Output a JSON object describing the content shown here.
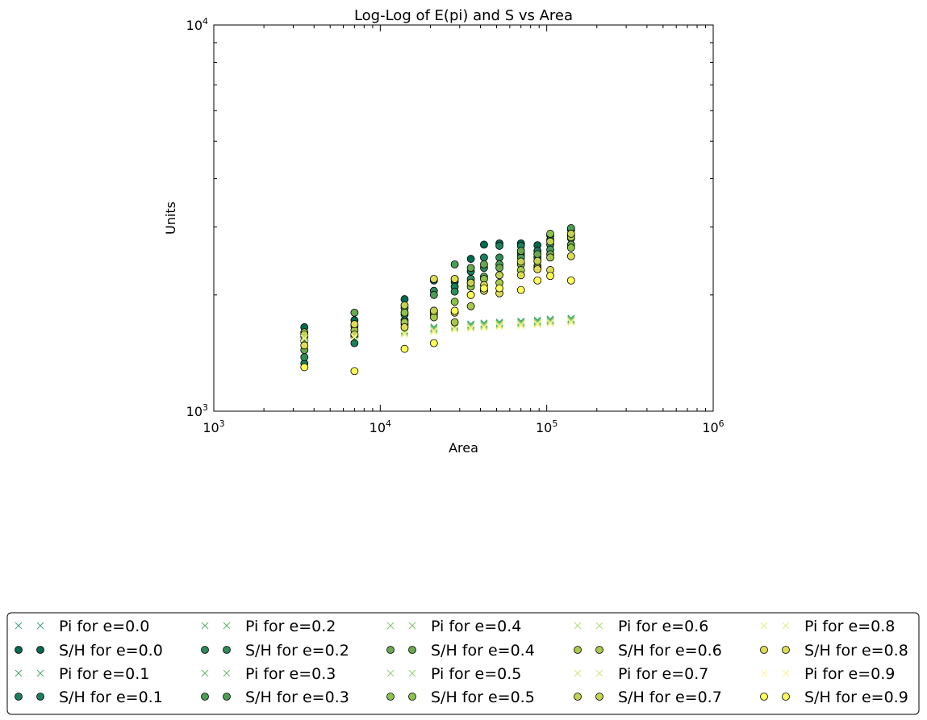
{
  "chart_data": {
    "type": "scatter",
    "title": "Log-Log of E(pi) and S vs Area",
    "xlabel": "Area",
    "ylabel": "Units",
    "xscale": "log",
    "yscale": "log",
    "xlim": [
      1000,
      1000000
    ],
    "ylim": [
      1000,
      10000
    ],
    "x_ticks": [
      {
        "value": 1000,
        "base": "10",
        "exp": "3"
      },
      {
        "value": 10000,
        "base": "10",
        "exp": "4"
      },
      {
        "value": 100000,
        "base": "10",
        "exp": "5"
      },
      {
        "value": 1000000,
        "base": "10",
        "exp": "6"
      }
    ],
    "y_ticks": [
      {
        "value": 1000,
        "base": "10",
        "exp": "3"
      },
      {
        "value": 10000,
        "base": "10",
        "exp": "4"
      }
    ],
    "grid": false,
    "legend_position": "bottom",
    "legend_columns": 5,
    "x": [
      3500,
      7000,
      14000,
      21000,
      28000,
      35000,
      42000,
      52000,
      70000,
      88000,
      105000,
      140000
    ],
    "series": [
      {
        "name": "Pi for e=0.0",
        "marker": "x",
        "color": "#3f9e7a",
        "values": [
          1590,
          1600,
          1620,
          1650,
          1670,
          1680,
          1690,
          1700,
          1710,
          1720,
          1730,
          1740
        ]
      },
      {
        "name": "S/H for e=0.0",
        "marker": "o",
        "color": "#006a4e",
        "values": [
          1650,
          1720,
          1950,
          2180,
          2160,
          2480,
          2700,
          2720,
          2720,
          2690,
          2850,
          2950
        ]
      },
      {
        "name": "Pi for e=0.1",
        "marker": "x",
        "color": "#3fa670",
        "values": [
          1590,
          1600,
          1620,
          1650,
          1670,
          1680,
          1690,
          1700,
          1710,
          1720,
          1730,
          1740
        ]
      },
      {
        "name": "S/H for e=0.1",
        "marker": "o",
        "color": "#1b7f5a",
        "values": [
          1330,
          1500,
          1720,
          1820,
          2100,
          2300,
          2500,
          2680,
          2680,
          2600,
          2780,
          2850
        ]
      },
      {
        "name": "Pi for e=0.2",
        "marker": "x",
        "color": "#52b06a",
        "values": [
          1580,
          1590,
          1615,
          1640,
          1660,
          1670,
          1680,
          1690,
          1700,
          1710,
          1720,
          1730
        ]
      },
      {
        "name": "S/H for e=0.2",
        "marker": "o",
        "color": "#2e8b57",
        "values": [
          1380,
          1560,
          1780,
          2050,
          2040,
          2200,
          2350,
          2500,
          2550,
          2500,
          2700,
          2800
        ]
      },
      {
        "name": "Pi for e=0.3",
        "marker": "x",
        "color": "#66bb66",
        "values": [
          1570,
          1585,
          1610,
          1635,
          1655,
          1665,
          1675,
          1685,
          1695,
          1705,
          1715,
          1725
        ]
      },
      {
        "name": "S/H for e=0.3",
        "marker": "o",
        "color": "#4a9e55",
        "values": [
          1520,
          1580,
          1850,
          2000,
          2400,
          2150,
          2230,
          2400,
          2500,
          2450,
          2620,
          2980
        ]
      },
      {
        "name": "Pi for e=0.4",
        "marker": "x",
        "color": "#7dc46a",
        "values": [
          1565,
          1580,
          1605,
          1630,
          1650,
          1660,
          1670,
          1680,
          1690,
          1700,
          1710,
          1720
        ]
      },
      {
        "name": "S/H for e=0.4",
        "marker": "o",
        "color": "#6aa84f",
        "values": [
          1440,
          1800,
          1680,
          1800,
          2200,
          2350,
          2400,
          2350,
          2600,
          2550,
          2550,
          2700
        ]
      },
      {
        "name": "Pi for e=0.5",
        "marker": "x",
        "color": "#96ce70",
        "values": [
          1560,
          1575,
          1600,
          1625,
          1645,
          1655,
          1665,
          1675,
          1685,
          1695,
          1705,
          1715
        ]
      },
      {
        "name": "S/H for e=0.5",
        "marker": "o",
        "color": "#8bc34a",
        "values": [
          1560,
          1660,
          1800,
          1780,
          1920,
          2100,
          2200,
          2250,
          2400,
          2380,
          2880,
          2650
        ]
      },
      {
        "name": "Pi for e=0.6",
        "marker": "x",
        "color": "#b0d878",
        "values": [
          1555,
          1570,
          1595,
          1620,
          1640,
          1650,
          1660,
          1670,
          1680,
          1690,
          1700,
          1710
        ]
      },
      {
        "name": "S/H for e=0.6",
        "marker": "o",
        "color": "#a5c94a",
        "values": [
          1600,
          1620,
          1700,
          1750,
          1700,
          1870,
          2050,
          2150,
          2320,
          2350,
          2500,
          2820
        ]
      },
      {
        "name": "Pi for e=0.7",
        "marker": "x",
        "color": "#cce27f",
        "values": [
          1550,
          1565,
          1590,
          1615,
          1635,
          1645,
          1655,
          1665,
          1675,
          1685,
          1695,
          1705
        ]
      },
      {
        "name": "S/H for e=0.7",
        "marker": "o",
        "color": "#c3d24f",
        "values": [
          1580,
          1580,
          1880,
          1820,
          1800,
          2150,
          2050,
          2250,
          2440,
          2450,
          2750,
          2880
        ]
      },
      {
        "name": "Pi for e=0.8",
        "marker": "x",
        "color": "#e5ec88",
        "values": [
          1545,
          1560,
          1585,
          1610,
          1630,
          1640,
          1650,
          1660,
          1670,
          1680,
          1690,
          1700
        ]
      },
      {
        "name": "S/H for e=0.8",
        "marker": "o",
        "color": "#dedc55",
        "values": [
          1480,
          1680,
          1650,
          2200,
          2200,
          2000,
          2120,
          2020,
          2250,
          2330,
          2320,
          2520
        ]
      },
      {
        "name": "Pi for e=0.9",
        "marker": "x",
        "color": "#fbf690",
        "values": [
          1540,
          1555,
          1580,
          1605,
          1625,
          1635,
          1645,
          1655,
          1665,
          1675,
          1685,
          1695
        ]
      },
      {
        "name": "S/H for e=0.9",
        "marker": "o",
        "color": "#ffff55",
        "values": [
          1300,
          1270,
          1450,
          1500,
          1820,
          2000,
          2080,
          2080,
          2060,
          2180,
          2240,
          2180
        ]
      }
    ]
  }
}
